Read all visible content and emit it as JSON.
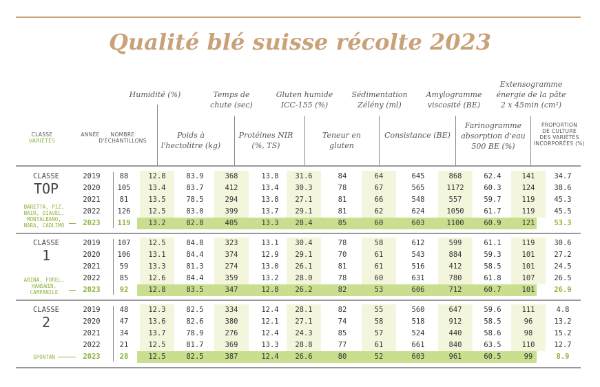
{
  "title": "Qualité blé suisse récolte 2023",
  "headers": {
    "classe": "CLASSE",
    "varietes": "VARIÉTÉS",
    "annee": "ANNÉE",
    "nombre": "NOMBRE",
    "echantillons": "D'ÉCHANTILLONS",
    "humidite": "Humidité (%)",
    "poids_1": "Poids à",
    "poids_2": "l'hectolitre (kg)",
    "temps_1": "Temps de",
    "temps_2": "chute (sec)",
    "proteines_1": "Protéines NIR",
    "proteines_2": "(%, TS)",
    "gluten_h_1": "Gluten humide",
    "gluten_h_2": "ICC-155 (%)",
    "teneur_1": "Teneur en",
    "teneur_2": "gluten",
    "sedim_1": "Sédimentation",
    "sedim_2": "Zélény (ml)",
    "consistance": "Consistance (BE)",
    "amylo_1": "Amylogramme",
    "amylo_2": "viscosité (BE)",
    "farino_1": "Farinogramme",
    "farino_2": "absorption d'eau",
    "farino_3": "500 BE (%)",
    "extenso_1": "Extensogramme",
    "extenso_2": "énergie de la pâte",
    "extenso_3": "2 x 45min (cm²)",
    "prop_1": "PROPORTION",
    "prop_2": "DE CULTURE",
    "prop_3": "DES VARIÉTÉS",
    "prop_4": "INCORPORÉES (%)"
  },
  "groups": [
    {
      "label": "CLASSE",
      "big": "TOP",
      "varieties": [
        "BARETTA, PIZ,",
        "NAIR, DIAVEL,",
        "MONTALBANO,",
        "NARA, CADLIMO"
      ],
      "rows": [
        [
          "2019",
          "88",
          "12.8",
          "83.9",
          "368",
          "13.8",
          "31.6",
          "84",
          "64",
          "645",
          "868",
          "62.4",
          "141",
          "34.7"
        ],
        [
          "2020",
          "105",
          "13.4",
          "83.7",
          "412",
          "13.4",
          "30.3",
          "78",
          "67",
          "565",
          "1172",
          "60.3",
          "124",
          "38.6"
        ],
        [
          "2021",
          "81",
          "13.5",
          "78.5",
          "294",
          "13.8",
          "27.1",
          "81",
          "66",
          "548",
          "557",
          "59.7",
          "119",
          "45.3"
        ],
        [
          "2022",
          "126",
          "12.5",
          "83.0",
          "399",
          "13.7",
          "29.1",
          "81",
          "62",
          "624",
          "1050",
          "61.7",
          "119",
          "45.5"
        ],
        [
          "2023",
          "119",
          "13.2",
          "82.8",
          "405",
          "13.3",
          "28.4",
          "85",
          "60",
          "603",
          "1100",
          "60.9",
          "121",
          "53.3"
        ]
      ]
    },
    {
      "label": "CLASSE",
      "big": "1",
      "varieties": [
        "ARINA, FOREL,",
        "HANSWIN,",
        "CAMPANILE"
      ],
      "rows": [
        [
          "2019",
          "107",
          "12.5",
          "84.8",
          "323",
          "13.1",
          "30.4",
          "78",
          "58",
          "612",
          "599",
          "61.1",
          "119",
          "30.6"
        ],
        [
          "2020",
          "106",
          "13.1",
          "84.4",
          "374",
          "12.9",
          "29.1",
          "70",
          "61",
          "543",
          "884",
          "59.3",
          "101",
          "27.2"
        ],
        [
          "2021",
          "59",
          "13.3",
          "81.3",
          "274",
          "13.0",
          "26.1",
          "81",
          "61",
          "516",
          "412",
          "58.5",
          "101",
          "24.5"
        ],
        [
          "2022",
          "85",
          "12.6",
          "84.4",
          "359",
          "13.2",
          "28.0",
          "78",
          "60",
          "631",
          "780",
          "61.8",
          "107",
          "26.5"
        ],
        [
          "2023",
          "92",
          "12.8",
          "83.5",
          "347",
          "12.8",
          "26.2",
          "82",
          "53",
          "606",
          "712",
          "60.7",
          "101",
          "26.9"
        ]
      ]
    },
    {
      "label": "CLASSE",
      "big": "2",
      "varieties": [
        "SPONTAN"
      ],
      "rows": [
        [
          "2019",
          "48",
          "12.3",
          "82.5",
          "334",
          "12.4",
          "28.1",
          "82",
          "55",
          "560",
          "647",
          "59.6",
          "111",
          "4.8"
        ],
        [
          "2020",
          "47",
          "13.6",
          "82.6",
          "380",
          "12.1",
          "27.1",
          "74",
          "58",
          "518",
          "912",
          "58.5",
          "96",
          "13.2"
        ],
        [
          "2021",
          "34",
          "13.7",
          "78.9",
          "276",
          "12.4",
          "24.3",
          "85",
          "57",
          "524",
          "440",
          "58.6",
          "98",
          "15.2"
        ],
        [
          "2022",
          "21",
          "12.5",
          "81.7",
          "369",
          "13.3",
          "28.8",
          "77",
          "61",
          "661",
          "840",
          "63.5",
          "110",
          "12.7"
        ],
        [
          "2023",
          "28",
          "12.5",
          "82.5",
          "387",
          "12.4",
          "26.6",
          "80",
          "52",
          "603",
          "961",
          "60.5",
          "99",
          "8.9"
        ]
      ]
    }
  ],
  "colors": {
    "accent": "#c9a27a",
    "green": "#8db43d",
    "band": "#f3f6dc",
    "highlight": "#c9df8f"
  }
}
